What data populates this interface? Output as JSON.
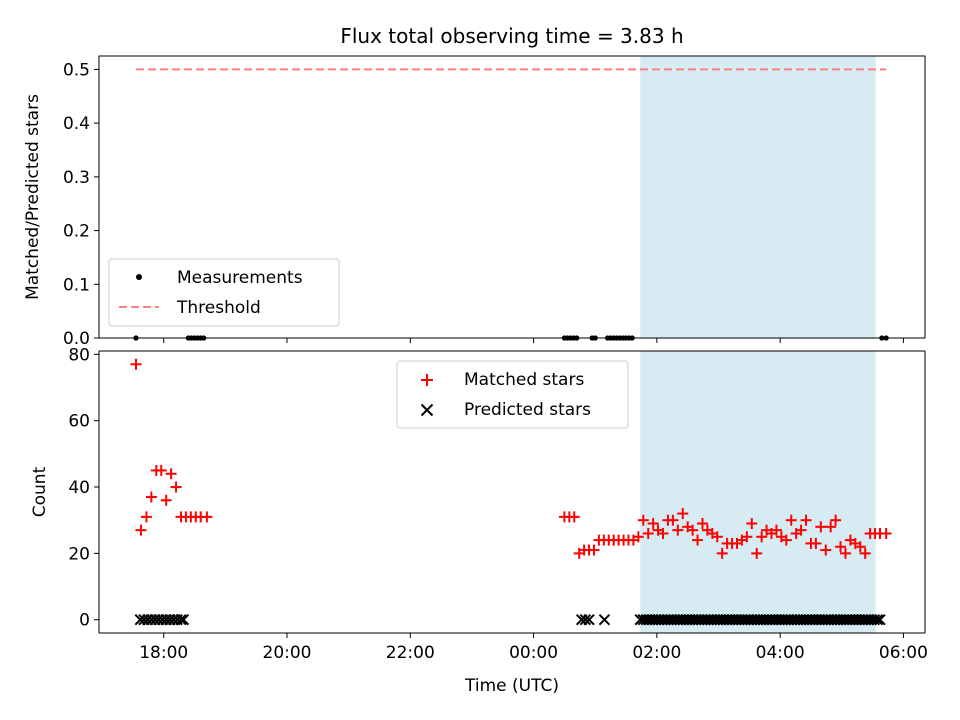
{
  "title": "Flux total observing time = 3.83 h",
  "colors": {
    "matched": "#ff0000",
    "predicted": "#000000",
    "measurement": "#000000",
    "threshold": "#ff7f7f",
    "span": "#add8e6"
  },
  "chart_data": [
    {
      "type": "scatter",
      "name": "top-panel",
      "xlabel": "",
      "ylabel": "Matched/Predicted stars",
      "xlim": [
        16.95,
        30.35
      ],
      "ylim": [
        0,
        0.525
      ],
      "yticks": [
        "0.0",
        "0.1",
        "0.2",
        "0.3",
        "0.4",
        "0.5"
      ],
      "ytick_values": [
        0,
        0.1,
        0.2,
        0.3,
        0.4,
        0.5
      ],
      "shaded_span": [
        25.73,
        29.55
      ],
      "threshold": {
        "name": "Threshold",
        "value": 0.5,
        "x_range": [
          17.55,
          29.72
        ]
      },
      "legend": [
        "Measurements",
        "Threshold"
      ],
      "legend_position": "lower-left",
      "series": [
        {
          "name": "Measurements",
          "x": [
            17.55,
            18.4,
            18.45,
            18.5,
            18.55,
            18.6,
            18.65,
            24.5,
            24.55,
            24.6,
            24.65,
            24.7,
            24.95,
            25.0,
            25.2,
            25.25,
            25.3,
            25.35,
            25.4,
            25.45,
            25.5,
            25.55,
            25.6,
            29.65,
            29.72
          ],
          "y": [
            0,
            0,
            0,
            0,
            0,
            0,
            0,
            0,
            0,
            0,
            0,
            0,
            0,
            0,
            0,
            0,
            0,
            0,
            0,
            0,
            0,
            0,
            0,
            0,
            0
          ]
        }
      ]
    },
    {
      "type": "scatter",
      "name": "bottom-panel",
      "xlabel": "Time (UTC)",
      "ylabel": "Count",
      "xlim": [
        16.95,
        30.35
      ],
      "ylim": [
        -4,
        81
      ],
      "yticks": [
        "0",
        "20",
        "40",
        "60",
        "80"
      ],
      "ytick_values": [
        0,
        20,
        40,
        60,
        80
      ],
      "xticks": [
        "18:00",
        "20:00",
        "22:00",
        "00:00",
        "02:00",
        "04:00",
        "06:00"
      ],
      "xtick_values": [
        18,
        20,
        22,
        24,
        26,
        28,
        30
      ],
      "shaded_span": [
        25.73,
        29.55
      ],
      "legend": [
        "Matched stars",
        "Predicted stars"
      ],
      "legend_position": "upper-center",
      "series": [
        {
          "name": "Matched stars",
          "x": [
            17.55,
            17.63,
            17.72,
            17.8,
            17.88,
            17.96,
            18.04,
            18.12,
            18.2,
            18.28,
            18.36,
            18.44,
            18.52,
            18.6,
            18.7,
            24.5,
            24.58,
            24.66,
            24.74,
            24.82,
            24.9,
            24.98,
            25.06,
            25.14,
            25.22,
            25.3,
            25.38,
            25.46,
            25.54,
            25.62,
            25.7,
            25.78,
            25.86,
            25.94,
            26.02,
            26.1,
            26.18,
            26.26,
            26.34,
            26.42,
            26.5,
            26.58,
            26.66,
            26.74,
            26.82,
            26.9,
            26.98,
            27.06,
            27.14,
            27.22,
            27.3,
            27.38,
            27.46,
            27.54,
            27.62,
            27.7,
            27.78,
            27.86,
            27.94,
            28.02,
            28.1,
            28.18,
            28.26,
            28.34,
            28.42,
            28.5,
            28.58,
            28.66,
            28.74,
            28.82,
            28.9,
            28.98,
            29.06,
            29.14,
            29.22,
            29.3,
            29.38,
            29.46,
            29.54,
            29.62,
            29.72
          ],
          "y": [
            77,
            27,
            31,
            37,
            45,
            45,
            36,
            44,
            40,
            31,
            31,
            31,
            31,
            31,
            31,
            31,
            31,
            31,
            20,
            21,
            21,
            21,
            24,
            24,
            24,
            24,
            24,
            24,
            24,
            24,
            25,
            30,
            26,
            29,
            27,
            26,
            30,
            30,
            27,
            32,
            28,
            27,
            24,
            29,
            27,
            26,
            25,
            20,
            23,
            23,
            23,
            24,
            25,
            29,
            20,
            25,
            27,
            26,
            27,
            25,
            24,
            30,
            26,
            27,
            30,
            23,
            23,
            28,
            21,
            28,
            30,
            22,
            20,
            24,
            23,
            22,
            20,
            26,
            26,
            26,
            26
          ]
        },
        {
          "name": "Predicted stars",
          "x": [
            17.62,
            17.68,
            17.74,
            17.8,
            17.86,
            17.92,
            17.98,
            18.04,
            18.1,
            18.16,
            18.22,
            18.28,
            18.32,
            24.78,
            24.84,
            24.9,
            25.15,
            25.73,
            25.78,
            25.83,
            25.88,
            25.93,
            25.98,
            26.03,
            26.08,
            26.13,
            26.18,
            26.23,
            26.28,
            26.33,
            26.38,
            26.43,
            26.48,
            26.53,
            26.58,
            26.63,
            26.68,
            26.73,
            26.78,
            26.83,
            26.88,
            26.93,
            26.98,
            27.03,
            27.08,
            27.13,
            27.18,
            27.23,
            27.28,
            27.33,
            27.38,
            27.43,
            27.48,
            27.53,
            27.58,
            27.63,
            27.68,
            27.73,
            27.78,
            27.83,
            27.88,
            27.93,
            27.98,
            28.03,
            28.08,
            28.13,
            28.18,
            28.23,
            28.28,
            28.33,
            28.38,
            28.43,
            28.48,
            28.53,
            28.58,
            28.63,
            28.68,
            28.73,
            28.78,
            28.83,
            28.88,
            28.93,
            28.98,
            29.03,
            29.08,
            29.13,
            29.18,
            29.23,
            29.28,
            29.33,
            29.38,
            29.43,
            29.48,
            29.53,
            29.58,
            29.62
          ],
          "y": [
            0,
            0,
            0,
            0,
            0,
            0,
            0,
            0,
            0,
            0,
            0,
            0,
            0,
            0,
            0,
            0,
            0,
            0,
            0,
            0,
            0,
            0,
            0,
            0,
            0,
            0,
            0,
            0,
            0,
            0,
            0,
            0,
            0,
            0,
            0,
            0,
            0,
            0,
            0,
            0,
            0,
            0,
            0,
            0,
            0,
            0,
            0,
            0,
            0,
            0,
            0,
            0,
            0,
            0,
            0,
            0,
            0,
            0,
            0,
            0,
            0,
            0,
            0,
            0,
            0,
            0,
            0,
            0,
            0,
            0,
            0,
            0,
            0,
            0,
            0,
            0,
            0,
            0,
            0,
            0,
            0,
            0,
            0,
            0,
            0,
            0,
            0,
            0,
            0,
            0,
            0,
            0,
            0,
            0,
            0,
            0
          ]
        }
      ]
    }
  ]
}
